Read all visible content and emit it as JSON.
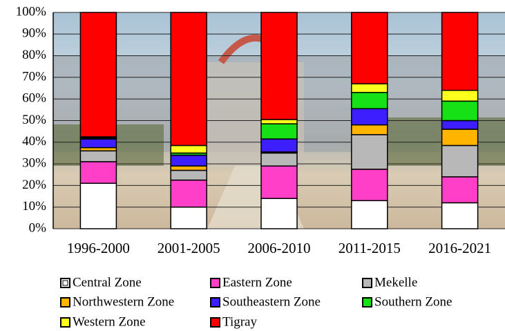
{
  "chart_data": {
    "type": "stacked_bar",
    "categories": [
      "1996-2000",
      "2001-2005",
      "2006-2010",
      "2011-2015",
      "2016-2021"
    ],
    "series": [
      {
        "name": "Central Zone",
        "color": "#ffffff",
        "values": [
          21,
          10,
          14,
          13,
          12
        ]
      },
      {
        "name": "Eastern Zone",
        "color": "#ff3fc8",
        "values": [
          10,
          12.5,
          15,
          14.5,
          12
        ]
      },
      {
        "name": "Mekelle",
        "color": "#b8b8b8",
        "values": [
          5,
          4.5,
          6,
          16,
          14.5
        ]
      },
      {
        "name": "Northwestern Zone",
        "color": "#ffb400",
        "values": [
          1.5,
          2,
          0.5,
          4.5,
          7.5
        ]
      },
      {
        "name": "Southeastern Zone",
        "color": "#3c1eff",
        "values": [
          4,
          5,
          6,
          7.5,
          4
        ]
      },
      {
        "name": "Southern Zone",
        "color": "#16e016",
        "values": [
          0.5,
          1,
          7,
          7.5,
          9
        ]
      },
      {
        "name": "Western Zone",
        "color": "#ffff1e",
        "values": [
          0.5,
          3.5,
          2,
          4,
          5
        ]
      },
      {
        "name": "Tigray",
        "color": "#ff0000",
        "values": [
          57.5,
          61.5,
          49.5,
          33,
          36
        ]
      }
    ],
    "ylim": [
      0,
      100
    ],
    "yticks": [
      {
        "value": 0,
        "label": "0%"
      },
      {
        "value": 10,
        "label": "10%"
      },
      {
        "value": 20,
        "label": "20%"
      },
      {
        "value": 30,
        "label": "30%"
      },
      {
        "value": 40,
        "label": "40%"
      },
      {
        "value": 50,
        "label": "50%"
      },
      {
        "value": 60,
        "label": "60%"
      },
      {
        "value": 70,
        "label": "70%"
      },
      {
        "value": 80,
        "label": "80%"
      },
      {
        "value": 90,
        "label": "90%"
      },
      {
        "value": 100,
        "label": "100%"
      }
    ],
    "grid": true
  }
}
